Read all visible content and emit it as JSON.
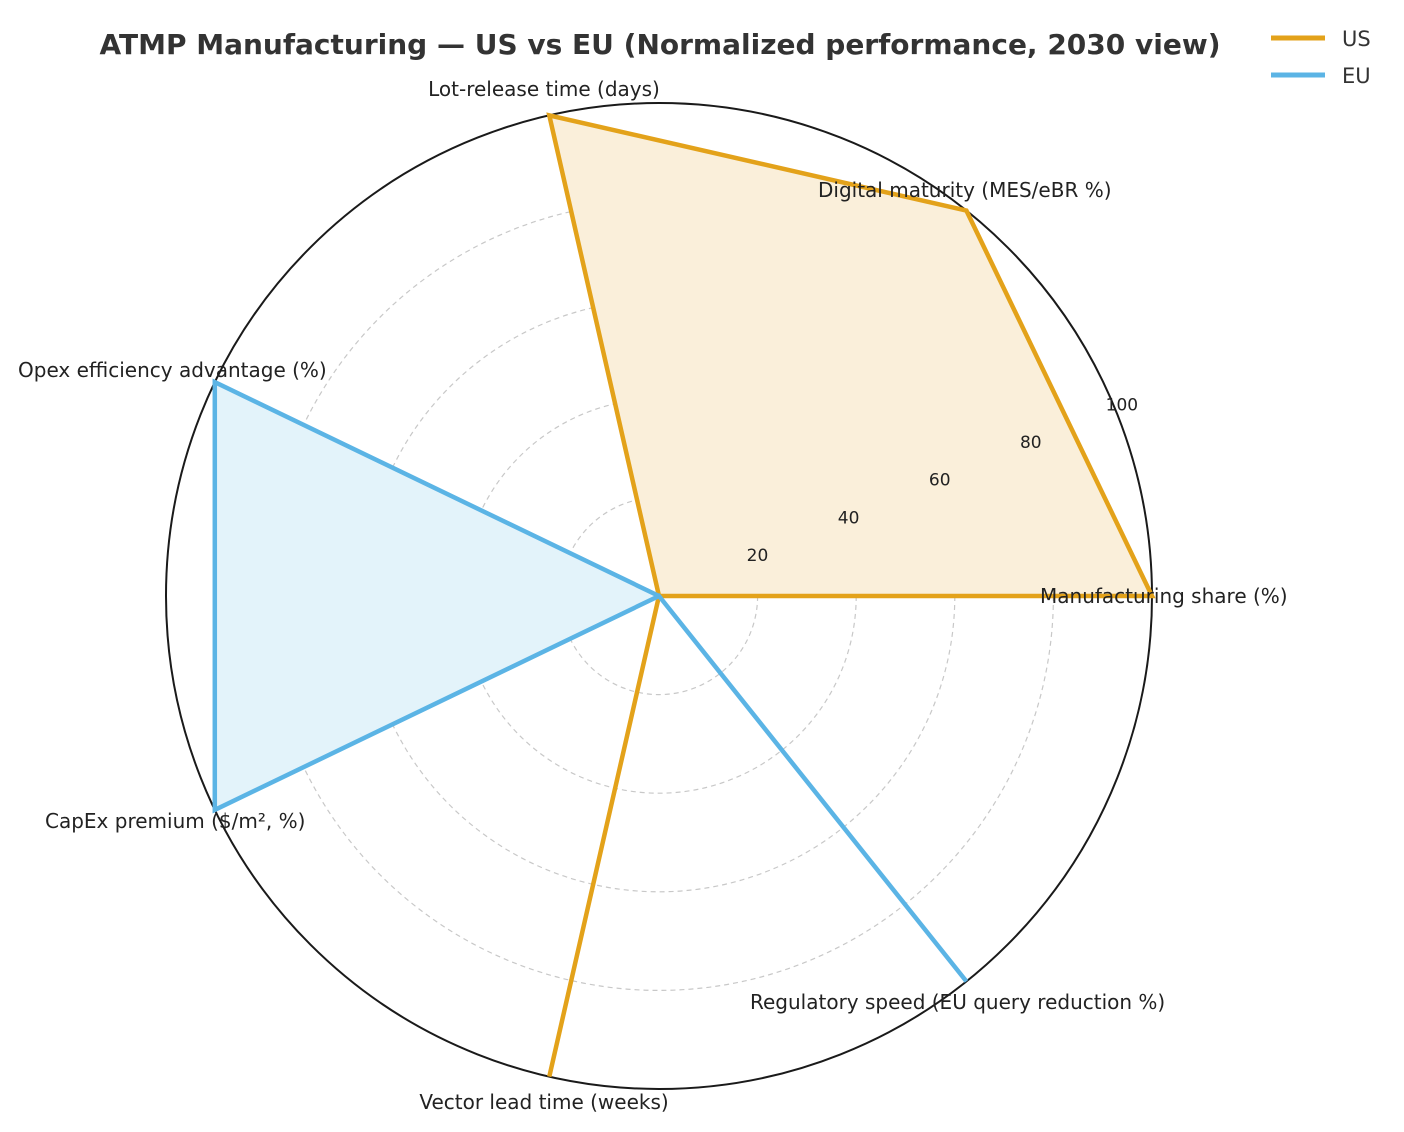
{
  "chart_data": {
    "type": "radar",
    "title": "ATMP Manufacturing — US vs EU (Normalized performance, 2030 view)",
    "axes": [
      "Manufacturing share (%)",
      "Digital maturity (MES/eBR %)",
      "Lot-release time (days)",
      "Opex efficiency advantage (%)",
      "CapEx premium ($/m², %)",
      "Vector lead time (weeks)",
      "Regulatory speed (EU query reduction %)"
    ],
    "rlim": [
      0,
      100
    ],
    "rticks": [
      20,
      40,
      60,
      80,
      100
    ],
    "rtick_labels": [
      "20",
      "40",
      "60",
      "80",
      "100"
    ],
    "grid": true,
    "legend_position": "top-right",
    "series": [
      {
        "name": "US",
        "color": "#E3A21A",
        "fill": "#FAEFDA",
        "values": [
          100,
          100,
          100,
          0,
          0,
          100,
          0
        ]
      },
      {
        "name": "EU",
        "color": "#5BB4E5",
        "fill": "#E3F3FA",
        "values": [
          0,
          0,
          0,
          100,
          100,
          0,
          100
        ]
      }
    ]
  }
}
